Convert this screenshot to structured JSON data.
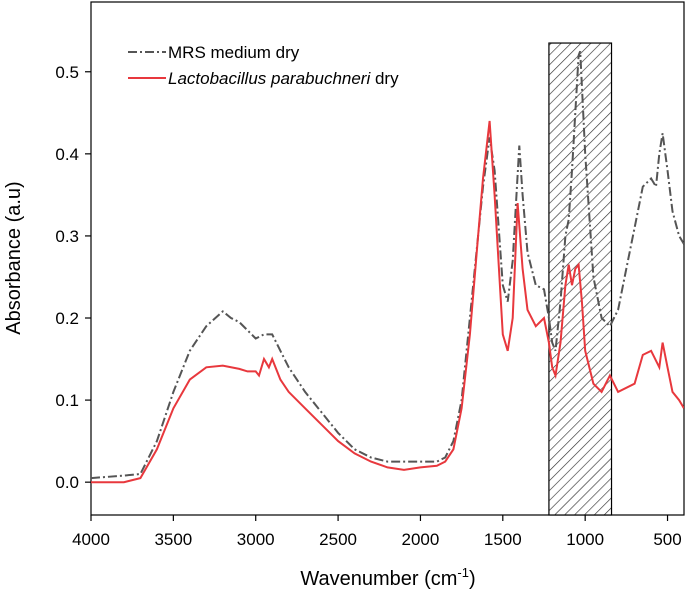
{
  "chart_data": {
    "type": "line",
    "xlabel": "Wavenumber (cm",
    "xlabel_sup": "-1",
    "xlabel_close": ")",
    "ylabel": "Absorbance (a.u)",
    "xlim": [
      4000,
      400
    ],
    "ylim": [
      -0.04,
      0.585
    ],
    "x_ticks": [
      4000,
      3500,
      3000,
      2500,
      2000,
      1500,
      1000,
      500
    ],
    "x_tick_labels": [
      "4000",
      "3500",
      "3000",
      "2500",
      "2000",
      "1500",
      "1000",
      "500"
    ],
    "y_ticks": [
      0.0,
      0.1,
      0.2,
      0.3,
      0.4,
      0.5
    ],
    "y_tick_labels": [
      "0.0",
      "0.1",
      "0.2",
      "0.3",
      "0.4",
      "0.5"
    ],
    "legend_position": "top-left",
    "highlight_region": {
      "x_from": 1220,
      "x_to": 840,
      "y_top": 0.535,
      "pattern": "diagonal-hatch"
    },
    "series": [
      {
        "name": "MRS medium dry",
        "name_parts": {
          "italic": "",
          "normal": "MRS medium dry"
        },
        "color": "#555555",
        "style": "dash-dot",
        "points": [
          [
            4000,
            0.005
          ],
          [
            3800,
            0.008
          ],
          [
            3700,
            0.01
          ],
          [
            3600,
            0.05
          ],
          [
            3500,
            0.11
          ],
          [
            3400,
            0.16
          ],
          [
            3300,
            0.19
          ],
          [
            3200,
            0.208
          ],
          [
            3150,
            0.2
          ],
          [
            3100,
            0.195
          ],
          [
            3050,
            0.185
          ],
          [
            3000,
            0.175
          ],
          [
            2950,
            0.18
          ],
          [
            2900,
            0.18
          ],
          [
            2850,
            0.16
          ],
          [
            2800,
            0.14
          ],
          [
            2700,
            0.11
          ],
          [
            2600,
            0.085
          ],
          [
            2500,
            0.06
          ],
          [
            2400,
            0.04
          ],
          [
            2300,
            0.03
          ],
          [
            2200,
            0.025
          ],
          [
            2100,
            0.025
          ],
          [
            2000,
            0.025
          ],
          [
            1900,
            0.025
          ],
          [
            1850,
            0.03
          ],
          [
            1800,
            0.05
          ],
          [
            1750,
            0.1
          ],
          [
            1700,
            0.2
          ],
          [
            1650,
            0.3
          ],
          [
            1620,
            0.36
          ],
          [
            1580,
            0.42
          ],
          [
            1550,
            0.38
          ],
          [
            1500,
            0.24
          ],
          [
            1470,
            0.22
          ],
          [
            1440,
            0.27
          ],
          [
            1400,
            0.41
          ],
          [
            1380,
            0.35
          ],
          [
            1350,
            0.28
          ],
          [
            1300,
            0.24
          ],
          [
            1250,
            0.235
          ],
          [
            1220,
            0.2
          ],
          [
            1200,
            0.17
          ],
          [
            1180,
            0.16
          ],
          [
            1150,
            0.22
          ],
          [
            1120,
            0.3
          ],
          [
            1100,
            0.32
          ],
          [
            1080,
            0.38
          ],
          [
            1060,
            0.45
          ],
          [
            1040,
            0.52
          ],
          [
            1030,
            0.525
          ],
          [
            1000,
            0.4
          ],
          [
            950,
            0.25
          ],
          [
            900,
            0.2
          ],
          [
            850,
            0.19
          ],
          [
            800,
            0.21
          ],
          [
            750,
            0.26
          ],
          [
            700,
            0.31
          ],
          [
            650,
            0.36
          ],
          [
            600,
            0.37
          ],
          [
            570,
            0.36
          ],
          [
            550,
            0.4
          ],
          [
            530,
            0.425
          ],
          [
            500,
            0.38
          ],
          [
            470,
            0.33
          ],
          [
            430,
            0.3
          ],
          [
            400,
            0.29
          ]
        ]
      },
      {
        "name": "Lactobacillus parabuchneri dry",
        "name_parts": {
          "italic": "Lactobacillus parabuchneri",
          "normal": " dry"
        },
        "color": "#e8383d",
        "style": "solid",
        "points": [
          [
            4000,
            0.0
          ],
          [
            3800,
            0.0
          ],
          [
            3700,
            0.005
          ],
          [
            3600,
            0.04
          ],
          [
            3500,
            0.09
          ],
          [
            3400,
            0.125
          ],
          [
            3300,
            0.14
          ],
          [
            3200,
            0.142
          ],
          [
            3100,
            0.138
          ],
          [
            3050,
            0.135
          ],
          [
            3000,
            0.135
          ],
          [
            2980,
            0.13
          ],
          [
            2950,
            0.15
          ],
          [
            2920,
            0.14
          ],
          [
            2900,
            0.15
          ],
          [
            2850,
            0.125
          ],
          [
            2800,
            0.11
          ],
          [
            2700,
            0.09
          ],
          [
            2600,
            0.07
          ],
          [
            2500,
            0.05
          ],
          [
            2400,
            0.035
          ],
          [
            2300,
            0.025
          ],
          [
            2200,
            0.018
          ],
          [
            2100,
            0.015
          ],
          [
            2000,
            0.018
          ],
          [
            1900,
            0.02
          ],
          [
            1850,
            0.025
          ],
          [
            1800,
            0.04
          ],
          [
            1750,
            0.09
          ],
          [
            1700,
            0.18
          ],
          [
            1650,
            0.3
          ],
          [
            1620,
            0.37
          ],
          [
            1580,
            0.44
          ],
          [
            1550,
            0.35
          ],
          [
            1500,
            0.18
          ],
          [
            1470,
            0.16
          ],
          [
            1440,
            0.2
          ],
          [
            1410,
            0.34
          ],
          [
            1380,
            0.26
          ],
          [
            1350,
            0.21
          ],
          [
            1300,
            0.19
          ],
          [
            1250,
            0.2
          ],
          [
            1220,
            0.17
          ],
          [
            1200,
            0.14
          ],
          [
            1180,
            0.13
          ],
          [
            1150,
            0.17
          ],
          [
            1120,
            0.24
          ],
          [
            1100,
            0.265
          ],
          [
            1080,
            0.24
          ],
          [
            1060,
            0.26
          ],
          [
            1040,
            0.265
          ],
          [
            1020,
            0.22
          ],
          [
            1000,
            0.16
          ],
          [
            950,
            0.12
          ],
          [
            900,
            0.11
          ],
          [
            850,
            0.13
          ],
          [
            800,
            0.11
          ],
          [
            700,
            0.12
          ],
          [
            650,
            0.155
          ],
          [
            600,
            0.16
          ],
          [
            550,
            0.14
          ],
          [
            530,
            0.17
          ],
          [
            500,
            0.14
          ],
          [
            470,
            0.11
          ],
          [
            430,
            0.1
          ],
          [
            400,
            0.09
          ]
        ]
      }
    ]
  }
}
